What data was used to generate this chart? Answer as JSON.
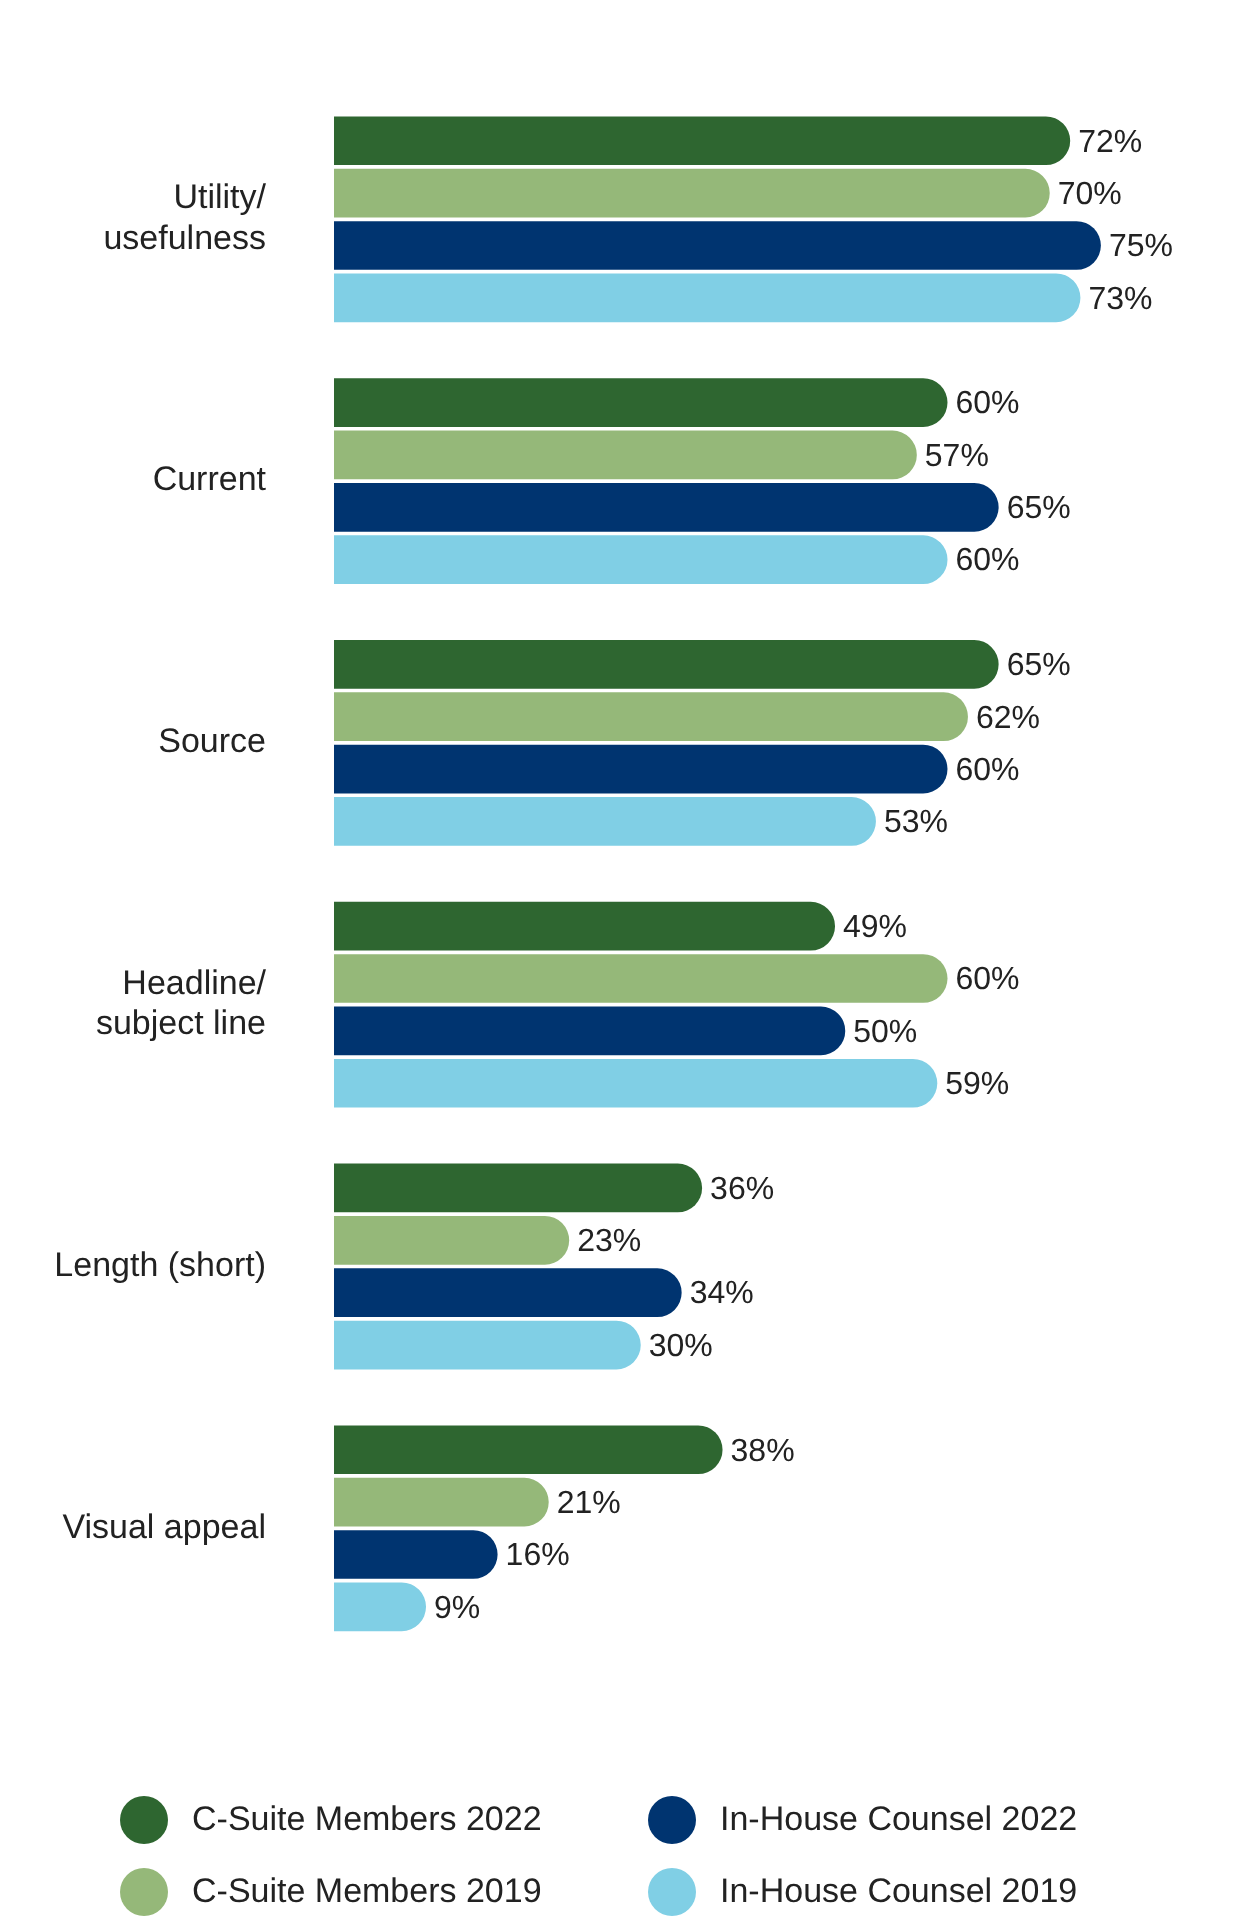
{
  "chart_data": {
    "type": "bar",
    "orientation": "horizontal",
    "legend": "bottom",
    "marker": "circle",
    "categories": [
      "Utility/ usefulness",
      "Current",
      "Source",
      "Headline/ subject line",
      "Length (short)",
      "Visual appeal"
    ],
    "series": [
      {
        "name": "C-Suite Members 2022",
        "color": "#2e6630",
        "values": [
          72,
          60,
          65,
          49,
          36,
          38
        ],
        "value_labels": [
          "72%",
          "60%",
          "65%",
          "49%",
          "36%",
          "38%"
        ]
      },
      {
        "name": "C-Suite Members 2019",
        "color": "#95b879",
        "values": [
          70,
          57,
          62,
          60,
          23,
          21
        ],
        "value_labels": [
          "70%",
          "57%",
          "62%",
          "60%",
          "23%",
          "21%"
        ]
      },
      {
        "name": "In-House Counsel 2022",
        "color": "#003470",
        "values": [
          75,
          65,
          60,
          50,
          34,
          16
        ],
        "value_labels": [
          "75%",
          "65%",
          "60%",
          "50%",
          "34%",
          "16%"
        ]
      },
      {
        "name": "In-House Counsel 2019",
        "color": "#80cfe5",
        "values": [
          73,
          60,
          53,
          59,
          30,
          9
        ],
        "value_labels": [
          "73%",
          "60%",
          "53%",
          "59%",
          "30%",
          "9%"
        ]
      }
    ]
  }
}
